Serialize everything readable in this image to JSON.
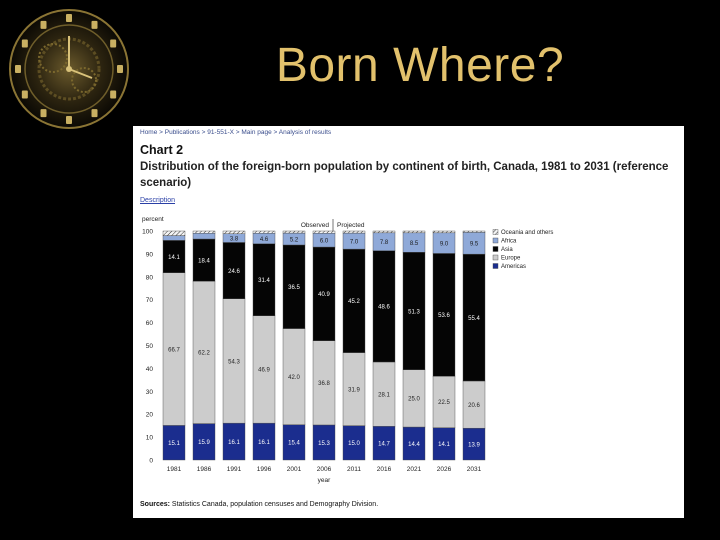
{
  "slide": {
    "title": "Born Where?"
  },
  "page": {
    "breadcrumb": "Home > Publications > 91-551-X > Main page > Analysis of results",
    "chart_label": "Chart 2",
    "heading": "Distribution of the foreign-born population by continent of birth, Canada, 1981 to 2031 (reference scenario)",
    "description_link": "Description",
    "sources_label": "Sources:",
    "sources_text": "Statistics Canada, population censuses and Demography Division."
  },
  "colors": {
    "americas": "#1b2d8e",
    "europe": "#cccccc",
    "asia": "#050505",
    "africa": "#8fa9d8",
    "oceania": "#f4f4f4"
  },
  "chart_data": {
    "type": "bar",
    "stacked": true,
    "categories": [
      "1981",
      "1986",
      "1991",
      "1996",
      "2001",
      "2006",
      "2011",
      "2016",
      "2021",
      "2026",
      "2031"
    ],
    "xlabel": "year",
    "ylabel": "percent",
    "ylim": [
      0,
      100
    ],
    "yticks": [
      0,
      10,
      20,
      30,
      40,
      50,
      60,
      70,
      80,
      90,
      100
    ],
    "period_labels": {
      "observed": "Observed",
      "projected": "Projected"
    },
    "legend_position": "right",
    "series": [
      {
        "name": "Americas",
        "values": [
          15.1,
          15.9,
          16.1,
          16.1,
          15.4,
          15.3,
          15.0,
          14.7,
          14.4,
          14.1,
          13.9
        ],
        "labels": [
          "15.1",
          "15.9",
          "16.1",
          "16.1",
          "15.4",
          "15.3",
          "15.0",
          "14.7",
          "14.4",
          "14.1",
          "13.9"
        ]
      },
      {
        "name": "Europe",
        "values": [
          66.7,
          62.2,
          54.3,
          46.9,
          42.0,
          36.8,
          31.9,
          28.1,
          25.0,
          22.5,
          20.6
        ],
        "labels": [
          "66.7",
          "62.2",
          "54.3",
          "46.9",
          "42.0",
          "36.8",
          "31.9",
          "28.1",
          "25.0",
          "22.5",
          "20.6"
        ]
      },
      {
        "name": "Asia",
        "values": [
          14.1,
          18.4,
          24.6,
          31.4,
          36.5,
          40.9,
          45.2,
          48.6,
          51.3,
          53.6,
          55.4
        ],
        "labels": [
          "14.1",
          "18.4",
          "24.6",
          "31.4",
          "36.5",
          "40.9",
          "45.2",
          "48.6",
          "51.3",
          "53.6",
          "55.4"
        ]
      },
      {
        "name": "Africa",
        "values": [
          2.1,
          2.5,
          3.8,
          4.6,
          5.2,
          6.0,
          7.0,
          7.8,
          8.5,
          9.0,
          9.5
        ],
        "labels": [
          "",
          "",
          "3.8",
          "4.6",
          "5.2",
          "6.0",
          "7.0",
          "7.8",
          "8.5",
          "9.0",
          "9.5"
        ]
      },
      {
        "name": "Oceania and others",
        "values": [
          2.0,
          1.0,
          1.2,
          1.0,
          0.9,
          1.0,
          0.9,
          0.8,
          0.8,
          0.8,
          0.6
        ],
        "labels": [
          "",
          "",
          "",
          "",
          "",
          "",
          "",
          "",
          "",
          "",
          ""
        ]
      }
    ]
  }
}
